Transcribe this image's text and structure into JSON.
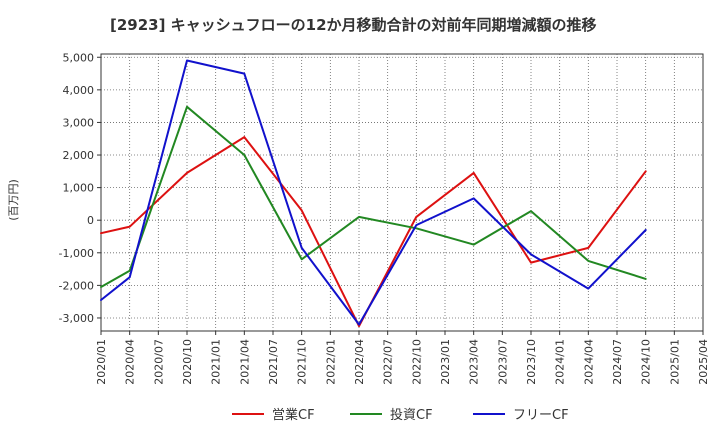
{
  "chart_data": {
    "type": "line",
    "title": "[2923]  キャッシュフローの12か月移動合計の対前年同期増減額の推移",
    "ylabel": "(百万円)",
    "xlabel": "",
    "ylim": [
      -3400,
      5100
    ],
    "yticks": [
      5000,
      4000,
      3000,
      2000,
      1000,
      0,
      -1000,
      -2000,
      -3000
    ],
    "ytick_labels": [
      "5,000",
      "4,000",
      "3,000",
      "2,000",
      "1,000",
      "0",
      "-1,000",
      "-2,000",
      "-3,000"
    ],
    "categories": [
      "2020/01",
      "2020/04",
      "2020/07",
      "2020/10",
      "2021/01",
      "2021/04",
      "2021/07",
      "2021/10",
      "2022/01",
      "2022/04",
      "2022/07",
      "2022/10",
      "2023/01",
      "2023/04",
      "2023/07",
      "2023/10",
      "2024/01",
      "2024/04",
      "2024/07",
      "2024/10",
      "2025/01",
      "2025/04"
    ],
    "grid": true,
    "legend_position": "bottom",
    "series": [
      {
        "name": "営業CF",
        "color": "#dd1111",
        "values": [
          -400,
          -200,
          null,
          1450,
          null,
          2550,
          null,
          300,
          null,
          -3250,
          null,
          100,
          null,
          1450,
          null,
          -1300,
          null,
          -850,
          null,
          1500,
          null,
          null
        ]
      },
      {
        "name": "投資CF",
        "color": "#228822",
        "values": [
          -2050,
          -1550,
          null,
          3480,
          null,
          2000,
          null,
          -1200,
          null,
          100,
          null,
          -250,
          null,
          -750,
          null,
          280,
          null,
          -1250,
          null,
          -1800,
          null,
          null
        ]
      },
      {
        "name": "フリーCF",
        "color": "#1111cc",
        "values": [
          -2450,
          -1750,
          null,
          4900,
          null,
          4500,
          null,
          -850,
          null,
          -3200,
          null,
          -150,
          null,
          670,
          null,
          -1050,
          null,
          -2100,
          null,
          -300,
          null,
          null
        ]
      }
    ]
  }
}
